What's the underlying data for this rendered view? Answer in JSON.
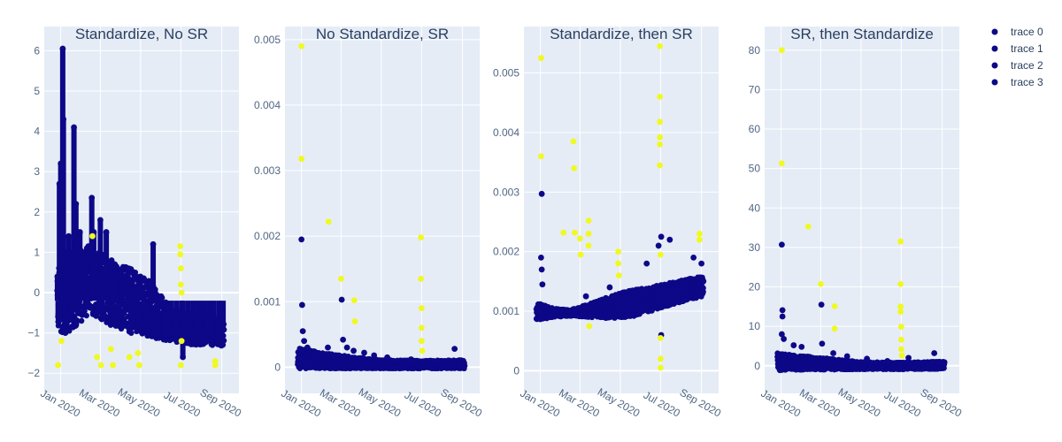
{
  "chart_data": [
    {
      "type": "scatter",
      "title": "Standardize, No SR",
      "x_ticks": [
        "Jan 2020",
        "Mar 2020",
        "May 2020",
        "Jul 2020",
        "Sep 2020"
      ],
      "xlim": [
        "2019-12-07",
        "2020-09-27"
      ],
      "ylim": [
        -2.5,
        6.6
      ],
      "yticks": [
        -2,
        -1,
        0,
        1,
        2,
        3,
        4,
        5,
        6
      ],
      "ytick_labels": [
        "−2",
        "−1",
        "0",
        "1",
        "2",
        "3",
        "4",
        "5",
        "6"
      ],
      "normal_color": "#0d0887",
      "anomaly_color": "#f0f921",
      "normal_points": [
        [
          "2019-12-27",
          0.4
        ],
        [
          "2019-12-28",
          -0.6
        ],
        [
          "2019-12-30",
          2.7
        ],
        [
          "2020-01-01",
          3.2
        ],
        [
          "2020-01-03",
          1.8
        ],
        [
          "2020-01-04",
          6.05
        ],
        [
          "2020-01-05",
          4.3
        ],
        [
          "2020-01-06",
          0.2
        ],
        [
          "2020-01-08",
          -1.0
        ],
        [
          "2020-01-10",
          1.0
        ],
        [
          "2020-01-13",
          1.4
        ],
        [
          "2020-01-16",
          0.6
        ],
        [
          "2020-01-19",
          -0.2
        ],
        [
          "2020-01-21",
          4.1
        ],
        [
          "2020-01-24",
          2.2
        ],
        [
          "2020-01-26",
          0.5
        ],
        [
          "2020-01-30",
          1.5
        ],
        [
          "2020-02-03",
          0.3
        ],
        [
          "2020-02-07",
          0.9
        ],
        [
          "2020-02-12",
          0.0
        ],
        [
          "2020-02-17",
          2.35
        ],
        [
          "2020-02-20",
          1.5
        ],
        [
          "2020-02-25",
          0.8
        ],
        [
          "2020-03-01",
          1.8
        ],
        [
          "2020-03-05",
          0.2
        ],
        [
          "2020-03-10",
          1.5
        ],
        [
          "2020-03-14",
          -0.3
        ],
        [
          "2020-03-18",
          0.8
        ],
        [
          "2020-03-23",
          0.7
        ],
        [
          "2020-03-28",
          -0.7
        ],
        [
          "2020-04-02",
          0.3
        ],
        [
          "2020-04-07",
          -0.2
        ],
        [
          "2020-04-12",
          0.6
        ],
        [
          "2020-04-16",
          -0.9
        ],
        [
          "2020-04-20",
          0.1
        ],
        [
          "2020-04-26",
          -0.6
        ],
        [
          "2020-05-02",
          0.0
        ],
        [
          "2020-05-08",
          -0.5
        ],
        [
          "2020-05-15",
          0.2
        ],
        [
          "2020-05-20",
          1.2
        ],
        [
          "2020-05-27",
          -0.9
        ],
        [
          "2020-06-03",
          -0.3
        ],
        [
          "2020-06-09",
          -1.0
        ],
        [
          "2020-06-16",
          -0.6
        ],
        [
          "2020-06-24",
          -1.1
        ],
        [
          "2020-07-02",
          -0.7
        ],
        [
          "2020-07-04",
          -1.6
        ],
        [
          "2020-07-12",
          -0.9
        ],
        [
          "2020-07-20",
          -0.6
        ],
        [
          "2020-07-28",
          -1.2
        ],
        [
          "2020-08-05",
          -0.5
        ],
        [
          "2020-08-13",
          -1.0
        ],
        [
          "2020-08-20",
          -0.6
        ],
        [
          "2020-08-28",
          -1.1
        ],
        [
          "2020-09-03",
          -0.9
        ]
      ],
      "normal_bands": [
        [
          "2019-12-27",
          -1.0,
          0.6
        ],
        [
          "2020-01-15",
          -1.0,
          1.0
        ],
        [
          "2020-02-15",
          -0.5,
          1.2
        ],
        [
          "2020-03-15",
          -0.8,
          0.8
        ],
        [
          "2020-04-15",
          -1.0,
          0.6
        ],
        [
          "2020-05-15",
          -1.1,
          0.3
        ],
        [
          "2020-06-15",
          -1.2,
          -0.4
        ],
        [
          "2020-07-15",
          -1.3,
          -0.5
        ],
        [
          "2020-08-15",
          -1.3,
          -0.6
        ],
        [
          "2020-09-04",
          -1.35,
          -0.7
        ]
      ],
      "anomaly_points": [
        [
          "2019-12-28",
          -1.8
        ],
        [
          "2020-01-02",
          -1.2
        ],
        [
          "2020-02-18",
          1.4
        ],
        [
          "2020-02-25",
          -1.6
        ],
        [
          "2020-03-02",
          -1.8
        ],
        [
          "2020-03-17",
          -1.4
        ],
        [
          "2020-03-20",
          -1.8
        ],
        [
          "2020-04-14",
          -1.6
        ],
        [
          "2020-04-27",
          -1.5
        ],
        [
          "2020-04-29",
          -1.8
        ],
        [
          "2020-06-30",
          1.15
        ],
        [
          "2020-06-30",
          0.95
        ],
        [
          "2020-07-01",
          0.6
        ],
        [
          "2020-07-01",
          0.2
        ],
        [
          "2020-07-01",
          -1.8
        ],
        [
          "2020-07-02",
          -1.2
        ],
        [
          "2020-07-02",
          0.0
        ],
        [
          "2020-08-22",
          -1.7
        ],
        [
          "2020-08-22",
          -1.8
        ]
      ]
    },
    {
      "type": "scatter",
      "title": "No Standardize, SR",
      "x_ticks": [
        "Jan 2020",
        "Mar 2020",
        "May 2020",
        "Jul 2020",
        "Sep 2020"
      ],
      "xlim": [
        "2019-12-07",
        "2020-09-27"
      ],
      "ylim": [
        -0.0004,
        0.0052
      ],
      "yticks": [
        0,
        0.001,
        0.002,
        0.003,
        0.004,
        0.005
      ],
      "ytick_labels": [
        "0",
        "0.001",
        "0.002",
        "0.003",
        "0.004",
        "0.005"
      ],
      "normal_color": "#0d0887",
      "anomaly_color": "#f0f921",
      "normal_points": [
        [
          "2020-01-01",
          0.00195
        ],
        [
          "2020-01-02",
          0.00095
        ],
        [
          "2020-01-03",
          0.00055
        ],
        [
          "2020-01-05",
          0.0004
        ],
        [
          "2020-01-10",
          0.0003
        ],
        [
          "2020-02-10",
          0.0003
        ],
        [
          "2020-03-02",
          0.00103
        ],
        [
          "2020-03-04",
          0.00042
        ],
        [
          "2020-03-10",
          0.0003
        ],
        [
          "2020-03-20",
          0.00025
        ],
        [
          "2020-04-05",
          0.00022
        ],
        [
          "2020-04-20",
          0.00018
        ],
        [
          "2020-05-10",
          0.00015
        ],
        [
          "2020-06-15",
          0.00012
        ],
        [
          "2020-08-20",
          0.00028
        ]
      ],
      "normal_bands": [
        [
          "2019-12-27",
          -2e-05,
          0.0003
        ],
        [
          "2020-02-01",
          -2e-05,
          0.00022
        ],
        [
          "2020-03-15",
          -2e-05,
          0.00016
        ],
        [
          "2020-05-01",
          -2e-05,
          0.00011
        ],
        [
          "2020-07-01",
          -2e-05,
          0.0001
        ],
        [
          "2020-09-04",
          -2e-05,
          0.00011
        ]
      ],
      "anomaly_points": [
        [
          "2020-01-01",
          0.0049
        ],
        [
          "2020-01-01",
          0.00318
        ],
        [
          "2020-02-11",
          0.00222
        ],
        [
          "2020-03-01",
          0.00135
        ],
        [
          "2020-03-21",
          0.00102
        ],
        [
          "2020-03-22",
          0.0007
        ],
        [
          "2020-06-30",
          0.00198
        ],
        [
          "2020-06-30",
          0.00135
        ],
        [
          "2020-07-01",
          0.0009
        ],
        [
          "2020-07-01",
          0.0006
        ],
        [
          "2020-07-01",
          0.0004
        ],
        [
          "2020-07-02",
          0.00025
        ]
      ]
    },
    {
      "type": "scatter",
      "title": "Standardize, then SR",
      "x_ticks": [
        "Jan 2020",
        "Mar 2020",
        "May 2020",
        "Jul 2020",
        "Sep 2020"
      ],
      "xlim": [
        "2019-12-07",
        "2020-09-27"
      ],
      "ylim": [
        -0.00038,
        0.00578
      ],
      "yticks": [
        0,
        0.001,
        0.002,
        0.003,
        0.004,
        0.005
      ],
      "ytick_labels": [
        "0",
        "0.001",
        "0.002",
        "0.003",
        "0.004",
        "0.005"
      ],
      "normal_color": "#0d0887",
      "anomaly_color": "#f0f921",
      "normal_points": [
        [
          "2020-01-03",
          0.00297
        ],
        [
          "2020-01-02",
          0.0019
        ],
        [
          "2020-01-03",
          0.0017
        ],
        [
          "2020-01-04",
          0.00145
        ],
        [
          "2020-03-10",
          0.00125
        ],
        [
          "2020-04-15",
          0.0014
        ],
        [
          "2020-06-10",
          0.0018
        ],
        [
          "2020-06-28",
          0.0021
        ],
        [
          "2020-07-02",
          0.00225
        ],
        [
          "2020-07-02",
          0.0006
        ],
        [
          "2020-07-15",
          0.0022
        ],
        [
          "2020-08-20",
          0.0019
        ],
        [
          "2020-09-01",
          0.0018
        ]
      ],
      "normal_bands": [
        [
          "2019-12-27",
          0.00085,
          0.00115
        ],
        [
          "2020-01-20",
          0.0009,
          0.00105
        ],
        [
          "2020-02-15",
          0.00092,
          0.00102
        ],
        [
          "2020-03-15",
          0.0009,
          0.00112
        ],
        [
          "2020-04-15",
          0.00088,
          0.00125
        ],
        [
          "2020-05-15",
          0.0009,
          0.00135
        ],
        [
          "2020-06-15",
          0.001,
          0.0014
        ],
        [
          "2020-07-15",
          0.0011,
          0.00148
        ],
        [
          "2020-08-15",
          0.0012,
          0.00155
        ],
        [
          "2020-09-04",
          0.00125,
          0.00158
        ]
      ],
      "anomaly_points": [
        [
          "2020-01-02",
          0.00525
        ],
        [
          "2020-01-02",
          0.0036
        ],
        [
          "2020-02-05",
          0.00232
        ],
        [
          "2020-02-20",
          0.00385
        ],
        [
          "2020-02-21",
          0.0034
        ],
        [
          "2020-02-22",
          0.00232
        ],
        [
          "2020-03-01",
          0.00222
        ],
        [
          "2020-03-02",
          0.00195
        ],
        [
          "2020-03-14",
          0.00252
        ],
        [
          "2020-03-14",
          0.0023
        ],
        [
          "2020-03-14",
          0.0021
        ],
        [
          "2020-03-15",
          0.00075
        ],
        [
          "2020-04-28",
          0.002
        ],
        [
          "2020-04-28",
          0.0018
        ],
        [
          "2020-04-29",
          0.0016
        ],
        [
          "2020-06-30",
          0.00545
        ],
        [
          "2020-06-30",
          0.0046
        ],
        [
          "2020-06-30",
          0.00418
        ],
        [
          "2020-06-30",
          0.00392
        ],
        [
          "2020-06-30",
          0.0038
        ],
        [
          "2020-06-30",
          0.00345
        ],
        [
          "2020-07-01",
          0.00195
        ],
        [
          "2020-07-01",
          0.00055
        ],
        [
          "2020-07-01",
          0.0002
        ],
        [
          "2020-07-01",
          5e-05
        ],
        [
          "2020-08-29",
          0.0023
        ],
        [
          "2020-08-29",
          0.0022
        ]
      ]
    },
    {
      "type": "scatter",
      "title": "SR, then Standardize",
      "x_ticks": [
        "Jan 2020",
        "Mar 2020",
        "May 2020",
        "Jul 2020",
        "Sep 2020"
      ],
      "xlim": [
        "2019-12-07",
        "2020-09-27"
      ],
      "ylim": [
        -7,
        86
      ],
      "yticks": [
        0,
        10,
        20,
        30,
        40,
        50,
        60,
        70,
        80
      ],
      "ytick_labels": [
        "0",
        "10",
        "20",
        "30",
        "40",
        "50",
        "60",
        "70",
        "80"
      ],
      "normal_color": "#0d0887",
      "anomaly_color": "#f0f921",
      "normal_points": [
        [
          "2020-01-02",
          30.7
        ],
        [
          "2020-01-03",
          14.1
        ],
        [
          "2020-01-03",
          12.5
        ],
        [
          "2020-01-02",
          8.0
        ],
        [
          "2020-01-05",
          6.8
        ],
        [
          "2020-01-20",
          5.2
        ],
        [
          "2020-02-01",
          4.8
        ],
        [
          "2020-03-02",
          15.5
        ],
        [
          "2020-03-03",
          5.6
        ],
        [
          "2020-03-20",
          3.2
        ],
        [
          "2020-04-10",
          2.4
        ],
        [
          "2020-05-10",
          1.8
        ],
        [
          "2020-06-10",
          1.2
        ],
        [
          "2020-07-12",
          2.0
        ],
        [
          "2020-08-20",
          3.2
        ]
      ],
      "normal_bands": [
        [
          "2019-12-27",
          -1.2,
          3.2
        ],
        [
          "2020-02-01",
          -1.0,
          2.5
        ],
        [
          "2020-03-15",
          -1.0,
          1.8
        ],
        [
          "2020-05-01",
          -0.9,
          1.0
        ],
        [
          "2020-07-01",
          -0.9,
          0.8
        ],
        [
          "2020-09-04",
          -0.8,
          1.1
        ]
      ],
      "anomaly_points": [
        [
          "2020-01-02",
          80.0
        ],
        [
          "2020-01-02",
          51.3
        ],
        [
          "2020-02-11",
          35.3
        ],
        [
          "2020-03-01",
          20.7
        ],
        [
          "2020-03-22",
          15.1
        ],
        [
          "2020-03-22",
          9.4
        ],
        [
          "2020-06-30",
          31.5
        ],
        [
          "2020-06-30",
          20.7
        ],
        [
          "2020-06-30",
          15.0
        ],
        [
          "2020-06-30",
          13.7
        ],
        [
          "2020-07-01",
          9.9
        ],
        [
          "2020-07-01",
          6.6
        ],
        [
          "2020-07-01",
          4.2
        ],
        [
          "2020-07-02",
          2.6
        ]
      ]
    }
  ],
  "legend": {
    "position": "top-right",
    "items": [
      {
        "label": "trace 0",
        "color": "#0d0887"
      },
      {
        "label": "trace 1",
        "color": "#0d0887"
      },
      {
        "label": "trace 2",
        "color": "#0d0887"
      },
      {
        "label": "trace 3",
        "color": "#0d0887"
      }
    ]
  }
}
